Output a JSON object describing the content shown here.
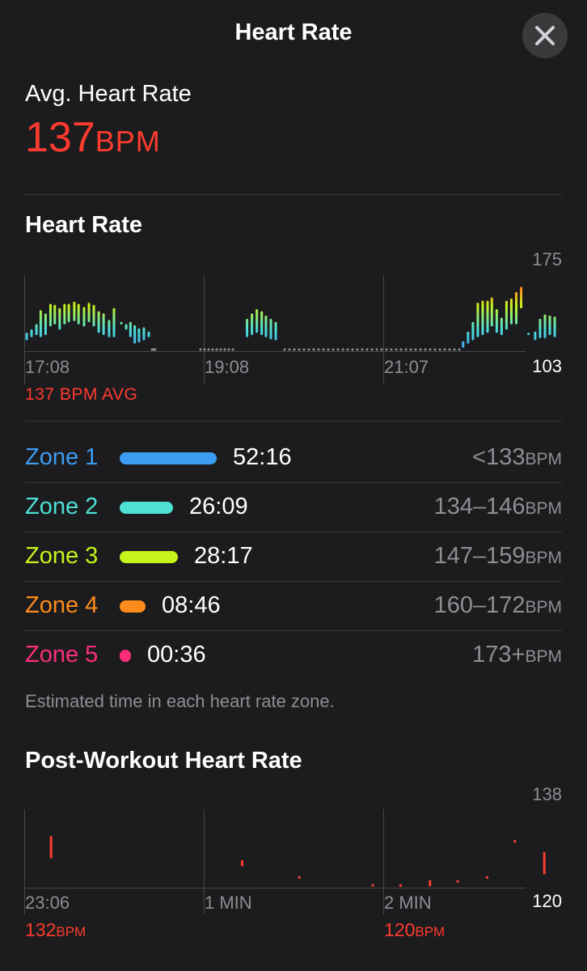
{
  "header": {
    "title": "Heart Rate",
    "close_icon": "close-icon"
  },
  "average": {
    "label": "Avg. Heart Rate",
    "value": "137",
    "unit": "BPM"
  },
  "heart_rate_section": {
    "title": "Heart Rate",
    "avg_caption": "137 BPM AVG",
    "y_max_label": "175",
    "y_min_label": "103",
    "x_labels": [
      "17:08",
      "19:08",
      "21:07"
    ]
  },
  "zones": [
    {
      "name": "Zone 1",
      "time": "52:16",
      "range": "<133",
      "unit": "BPM",
      "color": "#3d9df2"
    },
    {
      "name": "Zone 2",
      "time": "26:09",
      "range": "134–146",
      "unit": "BPM",
      "color": "#4ee0d5"
    },
    {
      "name": "Zone 3",
      "time": "28:17",
      "range": "147–159",
      "unit": "BPM",
      "color": "#c6f41c"
    },
    {
      "name": "Zone 4",
      "time": "08:46",
      "range": "160–172",
      "unit": "BPM",
      "color": "#ff8c1a"
    },
    {
      "name": "Zone 5",
      "time": "00:36",
      "range": "173+",
      "unit": "BPM",
      "color": "#ff2d78"
    }
  ],
  "footnote": "Estimated time in each heart rate zone.",
  "post_workout": {
    "title": "Post-Workout Heart Rate",
    "y_max_label": "138",
    "y_min_label": "120",
    "x_labels": [
      "23:06",
      "1 MIN",
      "2 MIN"
    ],
    "start_value": "132",
    "end_value": "120",
    "unit": "BPM",
    "color": "#ff3b2f"
  },
  "chart_data": [
    {
      "type": "bar",
      "title": "Heart Rate",
      "ylim": [
        103,
        175
      ],
      "x_ticks": [
        "17:08",
        "19:08",
        "21:07"
      ],
      "series": [
        {
          "points": [
            [
              0.0,
              115,
              120
            ],
            [
              0.8,
              118,
              123
            ],
            [
              1.6,
              120,
              128
            ],
            [
              2.3,
              118,
              141
            ],
            [
              3.1,
              120,
              138
            ],
            [
              3.9,
              128,
              147
            ],
            [
              4.6,
              130,
              146
            ],
            [
              5.4,
              125,
              143
            ],
            [
              6.2,
              130,
              147
            ],
            [
              6.9,
              132,
              147
            ],
            [
              7.8,
              133,
              149
            ],
            [
              8.5,
              130,
              147
            ],
            [
              9.4,
              128,
              144
            ],
            [
              10.2,
              132,
              148
            ],
            [
              11.0,
              128,
              146
            ],
            [
              11.8,
              122,
              140
            ],
            [
              12.6,
              120,
              138
            ],
            [
              13.5,
              118,
              132
            ],
            [
              14.3,
              118,
              143
            ],
            [
              15.5,
              130,
              130
            ],
            [
              16.3,
              125,
              128
            ],
            [
              17.0,
              118,
              130
            ],
            [
              17.7,
              112,
              127
            ],
            [
              18.4,
              113,
              124
            ],
            [
              19.2,
              115,
              125
            ],
            [
              20.0,
              118,
              121
            ],
            [
              36.1,
              118,
              133
            ],
            [
              36.9,
              120,
              138
            ],
            [
              37.7,
              122,
              142
            ],
            [
              38.5,
              120,
              140
            ],
            [
              39.2,
              118,
              136
            ],
            [
              40.0,
              116,
              133
            ],
            [
              40.8,
              115,
              130
            ],
            [
              71.5,
              108,
              112
            ],
            [
              72.3,
              112,
              121
            ],
            [
              73.1,
              115,
              130
            ],
            [
              73.9,
              118,
              148
            ],
            [
              74.7,
              120,
              150
            ],
            [
              75.5,
              122,
              150
            ],
            [
              76.2,
              128,
              153
            ],
            [
              77.0,
              122,
              142
            ],
            [
              77.8,
              120,
              134
            ],
            [
              78.6,
              125,
              150
            ],
            [
              79.4,
              130,
              152
            ],
            [
              80.2,
              130,
              158
            ],
            [
              81.0,
              145,
              163
            ],
            [
              82.2,
              120,
              120
            ],
            [
              83.3,
              115,
              121
            ],
            [
              84.1,
              117,
              133
            ],
            [
              84.9,
              117,
              137
            ],
            [
              85.7,
              120,
              136
            ],
            [
              86.5,
              118,
              135
            ]
          ]
        }
      ]
    },
    {
      "type": "scatter",
      "title": "Post-Workout Heart Rate",
      "ylim": [
        120,
        138
      ],
      "x_ticks": [
        "23:06",
        "1 MIN",
        "2 MIN"
      ],
      "series": [
        {
          "points": [
            [
              0.08,
              127,
              132
            ],
            [
              1.25,
              125,
              126
            ],
            [
              1.6,
              122,
              122
            ],
            [
              2.05,
              120,
              120
            ],
            [
              2.22,
              120,
              120
            ],
            [
              2.4,
              120,
              121
            ],
            [
              2.57,
              121,
              121
            ],
            [
              2.75,
              122,
              122
            ],
            [
              2.92,
              131,
              131
            ],
            [
              3.1,
              123,
              128
            ]
          ]
        }
      ]
    }
  ]
}
